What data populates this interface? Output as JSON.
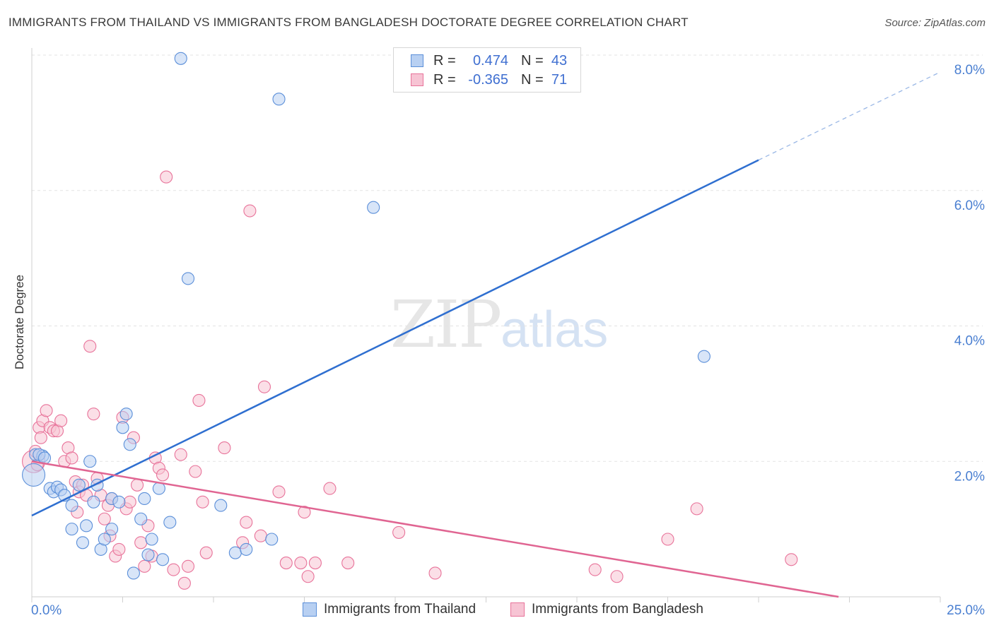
{
  "title": "IMMIGRANTS FROM THAILAND VS IMMIGRANTS FROM BANGLADESH DOCTORATE DEGREE CORRELATION CHART",
  "source": "Source: ZipAtlas.com",
  "watermark": {
    "zip": "ZIP",
    "atlas": "atlas"
  },
  "legend": {
    "r_label": "R =",
    "n_label": "N =",
    "thailand": {
      "r": "0.474",
      "n": "43"
    },
    "bangladesh": {
      "r": "-0.365",
      "n": "71"
    }
  },
  "colors": {
    "thailand": "#5b8fd9",
    "thailand_fill": "#b8d0f2",
    "bangladesh": "#e8739a",
    "bangladesh_fill": "#f7c4d4",
    "axis_text": "#4a7fd1"
  },
  "chart_data": {
    "type": "scatter",
    "title": "IMMIGRANTS FROM THAILAND VS IMMIGRANTS FROM BANGLADESH DOCTORATE DEGREE CORRELATION CHART",
    "xlabel": "",
    "ylabel": "Doctorate Degree",
    "xlim": [
      0,
      25
    ],
    "ylim": [
      0,
      8
    ],
    "x_tick_labels": [
      "0.0%",
      "25.0%"
    ],
    "y_ticks": [
      2,
      4,
      6,
      8
    ],
    "y_tick_labels": [
      "2.0%",
      "4.0%",
      "6.0%",
      "8.0%"
    ],
    "grid": true,
    "legend_position": "top-center",
    "series": [
      {
        "name": "Immigrants from Thailand",
        "points": [
          [
            0.1,
            2.1
          ],
          [
            0.3,
            2.08
          ],
          [
            0.5,
            1.6
          ],
          [
            0.6,
            1.55
          ],
          [
            0.7,
            1.62
          ],
          [
            0.8,
            1.58
          ],
          [
            0.9,
            1.5
          ],
          [
            1.1,
            1.35
          ],
          [
            1.1,
            1.0
          ],
          [
            1.3,
            1.65
          ],
          [
            1.4,
            0.8
          ],
          [
            1.5,
            1.05
          ],
          [
            1.6,
            2.0
          ],
          [
            1.7,
            1.4
          ],
          [
            1.8,
            1.65
          ],
          [
            1.9,
            0.7
          ],
          [
            2.0,
            0.85
          ],
          [
            2.2,
            1.45
          ],
          [
            2.2,
            1.0
          ],
          [
            2.4,
            1.4
          ],
          [
            2.5,
            2.5
          ],
          [
            2.6,
            2.7
          ],
          [
            2.7,
            2.25
          ],
          [
            2.8,
            0.35
          ],
          [
            3.0,
            1.15
          ],
          [
            3.1,
            1.45
          ],
          [
            3.2,
            0.62
          ],
          [
            3.3,
            0.85
          ],
          [
            3.5,
            1.6
          ],
          [
            3.6,
            0.55
          ],
          [
            3.8,
            1.1
          ],
          [
            4.1,
            7.95
          ],
          [
            4.3,
            4.7
          ],
          [
            5.2,
            1.35
          ],
          [
            5.6,
            0.65
          ],
          [
            5.9,
            0.7
          ],
          [
            6.6,
            0.85
          ],
          [
            6.8,
            7.35
          ],
          [
            9.4,
            5.75
          ],
          [
            18.5,
            3.55
          ],
          [
            0.2,
            2.1
          ],
          [
            0.35,
            2.05
          ],
          [
            0.05,
            1.8
          ]
        ]
      },
      {
        "name": "Immigrants from Bangladesh",
        "points": [
          [
            0.05,
            2.0
          ],
          [
            0.1,
            2.15
          ],
          [
            0.2,
            2.5
          ],
          [
            0.3,
            2.6
          ],
          [
            0.4,
            2.75
          ],
          [
            0.5,
            2.5
          ],
          [
            0.6,
            2.45
          ],
          [
            0.7,
            2.45
          ],
          [
            0.8,
            2.6
          ],
          [
            0.9,
            2.0
          ],
          [
            1.0,
            2.2
          ],
          [
            1.1,
            2.05
          ],
          [
            1.2,
            1.7
          ],
          [
            1.3,
            1.55
          ],
          [
            1.4,
            1.65
          ],
          [
            1.5,
            1.5
          ],
          [
            1.6,
            3.7
          ],
          [
            1.7,
            2.7
          ],
          [
            1.8,
            1.75
          ],
          [
            1.9,
            1.5
          ],
          [
            2.0,
            1.15
          ],
          [
            2.1,
            1.35
          ],
          [
            2.2,
            1.45
          ],
          [
            2.3,
            0.6
          ],
          [
            2.4,
            0.7
          ],
          [
            2.5,
            2.65
          ],
          [
            2.6,
            1.3
          ],
          [
            2.7,
            1.4
          ],
          [
            2.8,
            2.35
          ],
          [
            2.9,
            1.65
          ],
          [
            3.0,
            0.8
          ],
          [
            3.1,
            0.45
          ],
          [
            3.2,
            1.05
          ],
          [
            3.3,
            0.6
          ],
          [
            3.4,
            2.05
          ],
          [
            3.5,
            1.9
          ],
          [
            3.6,
            1.8
          ],
          [
            3.7,
            6.2
          ],
          [
            3.9,
            0.4
          ],
          [
            4.1,
            2.1
          ],
          [
            4.2,
            0.2
          ],
          [
            4.3,
            0.45
          ],
          [
            4.5,
            1.85
          ],
          [
            4.6,
            2.9
          ],
          [
            4.8,
            0.65
          ],
          [
            5.3,
            2.2
          ],
          [
            5.8,
            0.8
          ],
          [
            5.9,
            1.1
          ],
          [
            6.0,
            5.7
          ],
          [
            6.3,
            0.9
          ],
          [
            6.4,
            3.1
          ],
          [
            6.8,
            1.55
          ],
          [
            7.0,
            0.5
          ],
          [
            7.4,
            0.5
          ],
          [
            7.5,
            1.25
          ],
          [
            7.6,
            0.3
          ],
          [
            7.8,
            0.5
          ],
          [
            8.2,
            1.6
          ],
          [
            8.7,
            0.5
          ],
          [
            10.1,
            0.95
          ],
          [
            11.1,
            0.35
          ],
          [
            15.5,
            0.4
          ],
          [
            16.1,
            0.3
          ],
          [
            17.5,
            0.85
          ],
          [
            18.3,
            1.3
          ],
          [
            20.9,
            0.55
          ],
          [
            0.15,
            1.95
          ],
          [
            0.25,
            2.35
          ],
          [
            1.25,
            1.25
          ],
          [
            2.15,
            0.9
          ],
          [
            4.7,
            1.4
          ]
        ]
      }
    ],
    "trendlines": [
      {
        "series": "Immigrants from Thailand",
        "x_start": 0,
        "y_start": 1.2,
        "x_solid_end": 20,
        "y_solid_end": 6.45,
        "x_dash_end": 25,
        "y_dash_end": 7.75
      },
      {
        "series": "Immigrants from Bangladesh",
        "x_start": 0,
        "y_start": 2.0,
        "x_end": 22.2,
        "y_end": 0
      }
    ]
  }
}
